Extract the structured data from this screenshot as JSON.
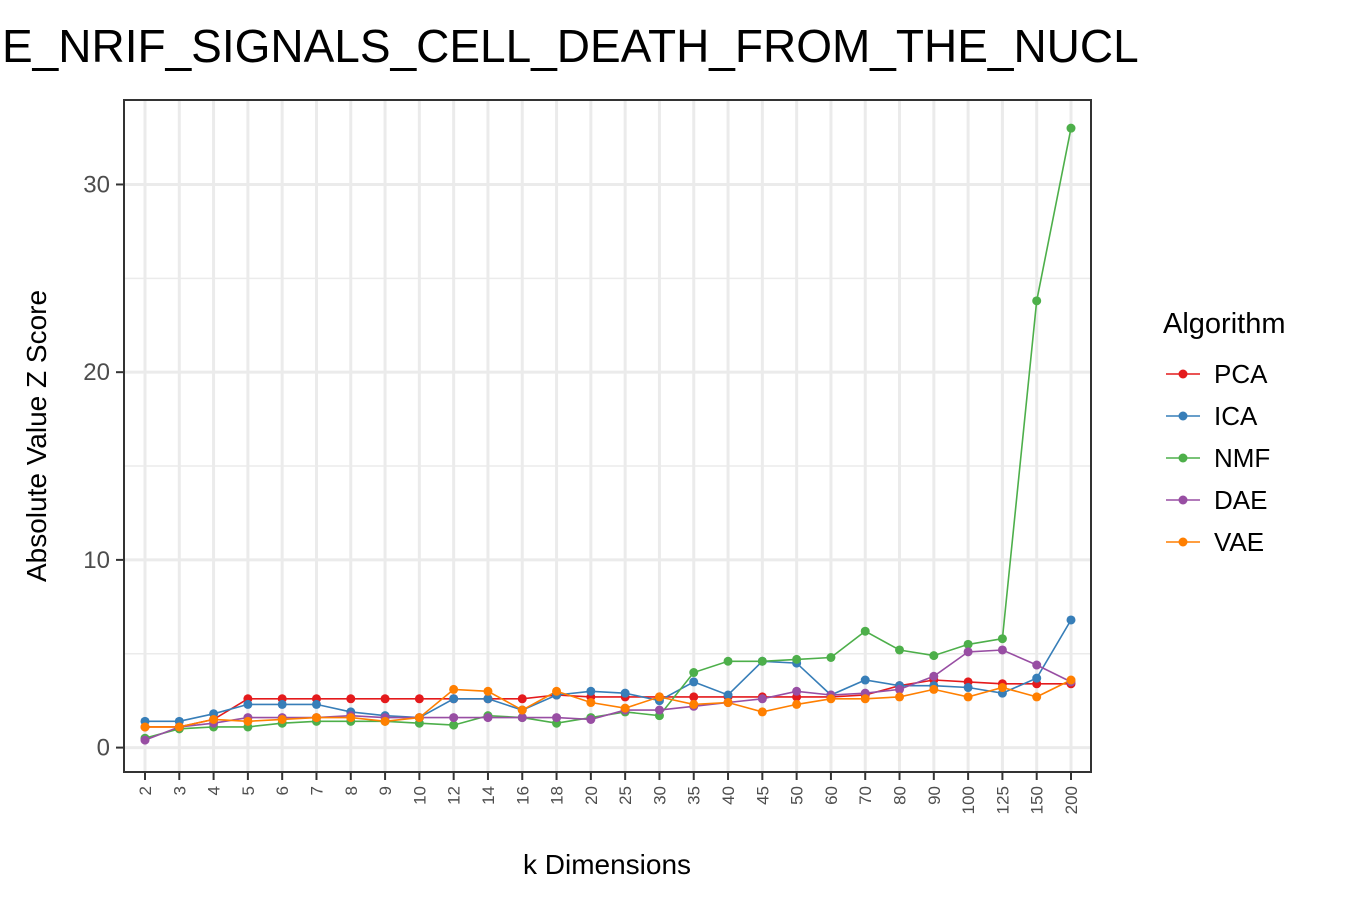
{
  "chart_data": {
    "type": "line",
    "title": "E_NRIF_SIGNALS_CELL_DEATH_FROM_THE_NUCL",
    "xlabel": "k Dimensions",
    "ylabel": "Absolute Value Z Score",
    "categories": [
      "2",
      "3",
      "4",
      "5",
      "6",
      "7",
      "8",
      "9",
      "10",
      "12",
      "14",
      "16",
      "18",
      "20",
      "25",
      "30",
      "35",
      "40",
      "45",
      "50",
      "60",
      "70",
      "80",
      "90",
      "100",
      "125",
      "150",
      "200"
    ],
    "yticks": [
      0,
      10,
      20,
      30
    ],
    "ylim": [
      -1.3,
      34.5
    ],
    "grid": true,
    "legend": {
      "title": "Algorithm",
      "position": "right"
    },
    "series": [
      {
        "name": "PCA",
        "color": "#e41a1c",
        "values": [
          1.1,
          1.1,
          1.5,
          2.6,
          2.6,
          2.6,
          2.6,
          2.6,
          2.6,
          2.6,
          2.6,
          2.6,
          2.8,
          2.7,
          2.7,
          2.7,
          2.7,
          2.7,
          2.7,
          2.7,
          2.7,
          2.8,
          3.3,
          3.6,
          3.5,
          3.4,
          3.4,
          3.4
        ]
      },
      {
        "name": "ICA",
        "color": "#377eb8",
        "values": [
          1.4,
          1.4,
          1.8,
          2.3,
          2.3,
          2.3,
          1.9,
          1.7,
          1.6,
          2.6,
          2.6,
          2.0,
          2.8,
          3.0,
          2.9,
          2.5,
          3.5,
          2.8,
          4.6,
          4.5,
          2.8,
          3.6,
          3.3,
          3.3,
          3.2,
          2.9,
          3.7,
          6.8
        ]
      },
      {
        "name": "NMF",
        "color": "#4daf4a",
        "values": [
          0.5,
          1.0,
          1.1,
          1.1,
          1.3,
          1.4,
          1.4,
          1.4,
          1.3,
          1.2,
          1.7,
          1.6,
          1.3,
          1.6,
          1.9,
          1.7,
          4.0,
          4.6,
          4.6,
          4.7,
          4.8,
          6.2,
          5.2,
          4.9,
          5.5,
          5.8,
          23.8,
          33.0
        ]
      },
      {
        "name": "DAE",
        "color": "#984ea3",
        "values": [
          0.4,
          1.1,
          1.3,
          1.6,
          1.6,
          1.6,
          1.7,
          1.6,
          1.6,
          1.6,
          1.6,
          1.6,
          1.6,
          1.5,
          2.0,
          2.0,
          2.2,
          2.4,
          2.6,
          3.0,
          2.8,
          2.9,
          3.1,
          3.8,
          5.1,
          5.2,
          4.4,
          3.5
        ]
      },
      {
        "name": "VAE",
        "color": "#ff7f00",
        "values": [
          1.1,
          1.1,
          1.5,
          1.4,
          1.5,
          1.6,
          1.6,
          1.4,
          1.6,
          3.1,
          3.0,
          2.0,
          3.0,
          2.4,
          2.1,
          2.7,
          2.3,
          2.4,
          1.9,
          2.3,
          2.6,
          2.6,
          2.7,
          3.1,
          2.7,
          3.2,
          2.7,
          3.6
        ]
      }
    ]
  }
}
